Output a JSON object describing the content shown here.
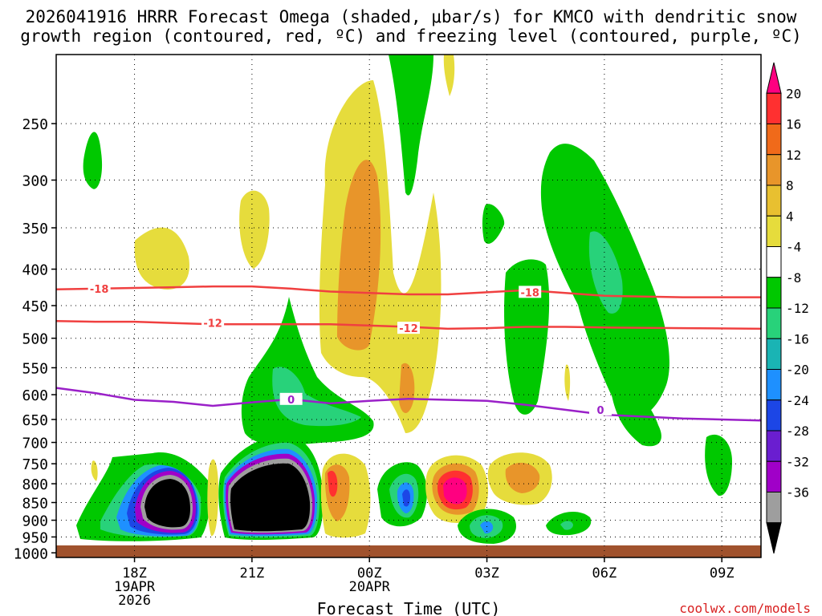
{
  "chart_data": {
    "type": "heatmap",
    "title_line1": "2026041916 HRRR Forecast Omega (shaded, μbar/s) for KMCO with dendritic snow",
    "title_line2": "growth region (contoured, red, ºC) and freezing level (contoured, purple, ºC)",
    "xlabel": "Forecast Time (UTC)",
    "credit": "coolwx.com/models",
    "y_ticks": [
      "250",
      "300",
      "350",
      "400",
      "450",
      "500",
      "550",
      "600",
      "650",
      "700",
      "750",
      "800",
      "850",
      "900",
      "950",
      "1000"
    ],
    "y_tick_values": [
      250,
      300,
      350,
      400,
      450,
      500,
      550,
      600,
      650,
      700,
      750,
      800,
      850,
      900,
      950,
      1000
    ],
    "ylim": [
      200,
      1015
    ],
    "x_range_hours": [
      16,
      34
    ],
    "x_ticks": [
      {
        "hour": 18,
        "label": "18Z",
        "sub1": "19APR",
        "sub2": "2026"
      },
      {
        "hour": 21,
        "label": "21Z",
        "sub1": "",
        "sub2": ""
      },
      {
        "hour": 24,
        "label": "00Z",
        "sub1": "20APR",
        "sub2": ""
      },
      {
        "hour": 27,
        "label": "03Z",
        "sub1": "",
        "sub2": ""
      },
      {
        "hour": 30,
        "label": "06Z",
        "sub1": "",
        "sub2": ""
      },
      {
        "hour": 33,
        "label": "09Z",
        "sub1": "",
        "sub2": ""
      }
    ],
    "colorbar": {
      "labels": [
        "20",
        "16",
        "12",
        "8",
        "4",
        "-4",
        "-8",
        "-12",
        "-16",
        "-20",
        "-24",
        "-28",
        "-32",
        "-36"
      ],
      "colors": [
        "#ff0080",
        "#ff3030",
        "#f06a1a",
        "#e8952a",
        "#e8c030",
        "#e6dc3c",
        "#ffffff",
        "#00c800",
        "#28d27a",
        "#1ab4b4",
        "#1e90ff",
        "#1c46e6",
        "#6a1ed0",
        "#a000c8",
        "#9e9e9e",
        "#000000"
      ]
    },
    "contours": [
      {
        "name": "-18",
        "color": "#f04040",
        "pressures": [
          427,
          426,
          425,
          424,
          423,
          423,
          426,
          430,
          432,
          434,
          434,
          431,
          428,
          432,
          436,
          438,
          438
        ],
        "label_positions": [
          {
            "hour": 17.1,
            "value": 426
          },
          {
            "hour": 28.1,
            "value": 431
          }
        ]
      },
      {
        "name": "-12",
        "color": "#f04040",
        "pressures": [
          473,
          474,
          474,
          476,
          478,
          478,
          478,
          478,
          480,
          482,
          485,
          484,
          482,
          482,
          483,
          484,
          485
        ],
        "label_positions": [
          {
            "hour": 20.0,
            "value": 476
          },
          {
            "hour": 25.0,
            "value": 484
          }
        ]
      },
      {
        "name": "0",
        "color": "#9a20c8",
        "pressures": [
          587,
          597,
          610,
          614,
          622,
          615,
          609,
          617,
          612,
          608,
          610,
          612,
          620,
          630,
          640,
          648,
          652
        ],
        "label_positions": [
          {
            "hour": 22.0,
            "value": 609
          },
          {
            "hour": 29.9,
            "value": 630
          }
        ]
      }
    ],
    "contour_hours": [
      16,
      17,
      18,
      19,
      20,
      21,
      22,
      23,
      24,
      25,
      26,
      27,
      28,
      29,
      30,
      32,
      34
    ]
  }
}
